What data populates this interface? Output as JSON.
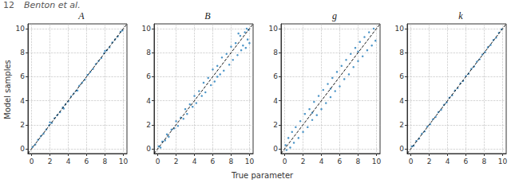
{
  "page": {
    "number": "12",
    "running_head": "Benton et al."
  },
  "figure": {
    "xlabel": "True parameter",
    "ylabel": "Model samples"
  },
  "chart_data": [
    {
      "type": "scatter",
      "title": "A",
      "grid": true,
      "xlim": [
        -0.4,
        10.4
      ],
      "ylim": [
        -0.4,
        10.4
      ],
      "xticks": [
        0,
        2,
        4,
        6,
        8,
        10
      ],
      "yticks": [
        0,
        2,
        4,
        6,
        8,
        10
      ],
      "series": [
        {
          "type": "scatter",
          "color": "#3b8bc2",
          "marker": "circle",
          "values": [
            [
              0.1,
              0.15
            ],
            [
              0.4,
              0.35
            ],
            [
              0.7,
              0.75
            ],
            [
              1.0,
              1.05
            ],
            [
              1.3,
              1.25
            ],
            [
              1.6,
              1.6
            ],
            [
              1.9,
              1.95
            ],
            [
              2.0,
              2.2
            ],
            [
              2.2,
              2.15
            ],
            [
              2.5,
              2.55
            ],
            [
              2.8,
              2.8
            ],
            [
              3.1,
              3.05
            ],
            [
              3.4,
              3.45
            ],
            [
              3.5,
              3.35
            ],
            [
              3.7,
              3.7
            ],
            [
              4.0,
              3.95
            ],
            [
              4.3,
              4.35
            ],
            [
              4.6,
              4.6
            ],
            [
              4.9,
              4.85
            ],
            [
              5.0,
              4.85
            ],
            [
              5.2,
              5.25
            ],
            [
              5.5,
              5.5
            ],
            [
              5.8,
              5.75
            ],
            [
              6.1,
              6.15
            ],
            [
              6.4,
              6.4
            ],
            [
              6.7,
              6.65
            ],
            [
              7.0,
              7.05
            ],
            [
              7.3,
              7.3
            ],
            [
              7.6,
              7.55
            ],
            [
              7.9,
              7.95
            ],
            [
              8.0,
              8.15
            ],
            [
              8.2,
              8.2
            ],
            [
              8.5,
              8.45
            ],
            [
              8.8,
              8.85
            ],
            [
              9.1,
              9.1
            ],
            [
              9.4,
              9.35
            ],
            [
              9.7,
              9.75
            ],
            [
              9.9,
              9.85
            ]
          ]
        },
        {
          "type": "line",
          "color": "#000000",
          "line_style": "dashed",
          "values": [
            [
              -0.4,
              -0.4
            ],
            [
              10.4,
              10.4
            ]
          ]
        }
      ]
    },
    {
      "type": "scatter",
      "title": "B",
      "grid": true,
      "xlim": [
        -0.4,
        10.4
      ],
      "ylim": [
        -0.4,
        10.4
      ],
      "xticks": [
        0,
        2,
        4,
        6,
        8,
        10
      ],
      "yticks": [
        0,
        2,
        4,
        6,
        8,
        10
      ],
      "series": [
        {
          "type": "scatter",
          "color": "#3b8bc2",
          "marker": "circle",
          "values": [
            [
              0.1,
              0.2
            ],
            [
              0.3,
              0.1
            ],
            [
              0.5,
              0.6
            ],
            [
              0.8,
              0.7
            ],
            [
              1.0,
              1.2
            ],
            [
              1.2,
              1.0
            ],
            [
              1.5,
              1.6
            ],
            [
              1.8,
              1.7
            ],
            [
              2.0,
              2.3
            ],
            [
              2.2,
              1.9
            ],
            [
              2.5,
              2.6
            ],
            [
              2.8,
              2.5
            ],
            [
              3.0,
              3.3
            ],
            [
              3.2,
              2.9
            ],
            [
              3.5,
              3.7
            ],
            [
              3.8,
              3.5
            ],
            [
              4.0,
              4.4
            ],
            [
              4.2,
              3.8
            ],
            [
              4.5,
              4.8
            ],
            [
              4.8,
              4.4
            ],
            [
              5.0,
              5.5
            ],
            [
              5.2,
              4.7
            ],
            [
              5.5,
              5.9
            ],
            [
              5.8,
              5.3
            ],
            [
              6.0,
              6.6
            ],
            [
              6.2,
              5.6
            ],
            [
              6.5,
              6.9
            ],
            [
              6.5,
              6.0
            ],
            [
              6.8,
              6.2
            ],
            [
              7.0,
              7.6
            ],
            [
              7.2,
              6.5
            ],
            [
              7.5,
              7.9
            ],
            [
              7.8,
              7.0
            ],
            [
              8.0,
              8.5
            ],
            [
              8.2,
              7.4
            ],
            [
              8.5,
              8.8
            ],
            [
              8.7,
              7.8
            ],
            [
              8.8,
              9.6
            ],
            [
              9.0,
              9.4
            ],
            [
              9.1,
              8.2
            ],
            [
              9.3,
              8.6
            ],
            [
              9.5,
              9.7
            ],
            [
              9.6,
              8.4
            ],
            [
              9.7,
              10.0
            ],
            [
              9.8,
              9.1
            ],
            [
              9.9,
              9.9
            ],
            [
              10.0,
              8.8
            ]
          ]
        },
        {
          "type": "line",
          "color": "#000000",
          "line_style": "dashed",
          "values": [
            [
              -0.4,
              -0.4
            ],
            [
              10.4,
              10.4
            ]
          ]
        }
      ]
    },
    {
      "type": "scatter",
      "title": "g",
      "grid": true,
      "xlim": [
        -0.4,
        10.4
      ],
      "ylim": [
        -0.4,
        10.4
      ],
      "xticks": [
        0,
        2,
        4,
        6,
        8,
        10
      ],
      "yticks": [
        0,
        2,
        4,
        6,
        8,
        10
      ],
      "series": [
        {
          "type": "scatter",
          "color": "#3b8bc2",
          "marker": "circle",
          "values": [
            [
              0.1,
              0.3
            ],
            [
              0.2,
              -0.1
            ],
            [
              0.4,
              0.9
            ],
            [
              0.6,
              0.1
            ],
            [
              0.8,
              1.4
            ],
            [
              1.0,
              0.5
            ],
            [
              1.2,
              1.8
            ],
            [
              1.5,
              0.9
            ],
            [
              1.7,
              2.3
            ],
            [
              2.0,
              1.4
            ],
            [
              2.2,
              2.9
            ],
            [
              2.5,
              1.8
            ],
            [
              2.7,
              3.3
            ],
            [
              3.0,
              2.4
            ],
            [
              3.0,
              3.0
            ],
            [
              3.2,
              3.9
            ],
            [
              3.5,
              2.8
            ],
            [
              3.7,
              4.4
            ],
            [
              4.0,
              3.3
            ],
            [
              4.2,
              4.9
            ],
            [
              4.5,
              3.8
            ],
            [
              4.7,
              5.4
            ],
            [
              5.0,
              4.3
            ],
            [
              5.0,
              5.0
            ],
            [
              5.2,
              5.9
            ],
            [
              5.5,
              4.8
            ],
            [
              5.7,
              6.4
            ],
            [
              6.0,
              5.2
            ],
            [
              6.2,
              6.9
            ],
            [
              6.5,
              5.8
            ],
            [
              6.7,
              7.4
            ],
            [
              7.0,
              6.2
            ],
            [
              7.2,
              7.9
            ],
            [
              7.5,
              6.8
            ],
            [
              7.7,
              8.4
            ],
            [
              8.0,
              7.3
            ],
            [
              8.0,
              8.1
            ],
            [
              8.2,
              8.9
            ],
            [
              8.5,
              7.7
            ],
            [
              8.7,
              9.3
            ],
            [
              9.0,
              8.2
            ],
            [
              9.2,
              9.7
            ],
            [
              9.5,
              8.6
            ],
            [
              9.7,
              10.0
            ],
            [
              9.9,
              9.0
            ]
          ]
        },
        {
          "type": "line",
          "color": "#000000",
          "line_style": "dashed",
          "values": [
            [
              -0.4,
              -0.4
            ],
            [
              10.4,
              10.4
            ]
          ]
        }
      ]
    },
    {
      "type": "scatter",
      "title": "k",
      "grid": true,
      "xlim": [
        -0.4,
        10.4
      ],
      "ylim": [
        -0.4,
        10.4
      ],
      "xticks": [
        0,
        2,
        4,
        6,
        8,
        10
      ],
      "yticks": [
        0,
        2,
        4,
        6,
        8,
        10
      ],
      "series": [
        {
          "type": "scatter",
          "color": "#3b8bc2",
          "marker": "circle",
          "values": [
            [
              0.1,
              0.2
            ],
            [
              0.3,
              0.25
            ],
            [
              0.6,
              0.65
            ],
            [
              0.9,
              0.85
            ],
            [
              1.2,
              1.25
            ],
            [
              1.5,
              1.45
            ],
            [
              1.8,
              1.85
            ],
            [
              2.1,
              2.05
            ],
            [
              2.4,
              2.45
            ],
            [
              2.7,
              2.65
            ],
            [
              3.0,
              3.05
            ],
            [
              3.3,
              3.25
            ],
            [
              3.6,
              3.65
            ],
            [
              3.9,
              3.85
            ],
            [
              4.2,
              4.25
            ],
            [
              4.5,
              4.45
            ],
            [
              4.8,
              4.85
            ],
            [
              5.1,
              5.05
            ],
            [
              5.4,
              5.45
            ],
            [
              5.7,
              5.65
            ],
            [
              6.0,
              6.05
            ],
            [
              6.3,
              6.25
            ],
            [
              6.6,
              6.65
            ],
            [
              6.9,
              6.85
            ],
            [
              7.2,
              7.25
            ],
            [
              7.5,
              7.45
            ],
            [
              7.8,
              7.85
            ],
            [
              8.1,
              8.05
            ],
            [
              8.4,
              8.45
            ],
            [
              8.7,
              8.65
            ],
            [
              9.0,
              9.05
            ],
            [
              9.3,
              9.25
            ],
            [
              9.6,
              9.65
            ],
            [
              9.9,
              9.95
            ]
          ]
        },
        {
          "type": "line",
          "color": "#000000",
          "line_style": "dashed",
          "values": [
            [
              -0.4,
              -0.4
            ],
            [
              10.4,
              10.4
            ]
          ]
        }
      ]
    }
  ]
}
